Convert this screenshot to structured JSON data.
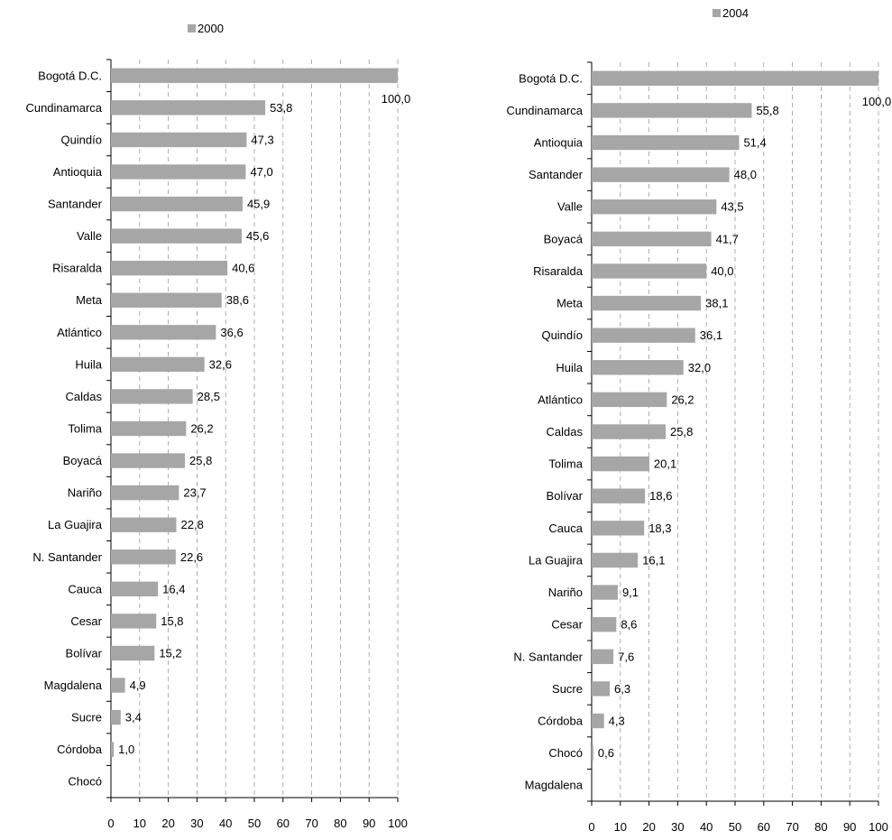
{
  "chart_data": [
    {
      "type": "bar",
      "orientation": "horizontal",
      "series": [
        {
          "name": "2000",
          "color": "#a6a6a6"
        }
      ],
      "legend_position": "top",
      "categories": [
        "Bogotá D.C.",
        "Cundinamarca",
        "Quindío",
        "Antioquia",
        "Santander",
        "Valle",
        "Risaralda",
        "Meta",
        "Atlántico",
        "Huila",
        "Caldas",
        "Tolima",
        "Boyacá",
        "Nariño",
        "La Guajira",
        "N. Santander",
        "Cauca",
        "Cesar",
        "Bolívar",
        "Magdalena",
        "Sucre",
        "Córdoba",
        "Chocó"
      ],
      "values": [
        100.0,
        53.8,
        47.3,
        47.0,
        45.9,
        45.6,
        40.6,
        38.6,
        36.6,
        32.6,
        28.5,
        26.2,
        25.8,
        23.7,
        22.8,
        22.6,
        16.4,
        15.8,
        15.2,
        4.9,
        3.4,
        1.0,
        null
      ],
      "data_labels": [
        "100,0",
        "53,8",
        "47,3",
        "47,0",
        "45,9",
        "45,6",
        "40,6",
        "38,6",
        "36,6",
        "32,6",
        "28,5",
        "26,2",
        "25,8",
        "23,7",
        "22,8",
        "22,6",
        "16,4",
        "15,8",
        "15,2",
        "4,9",
        "3,4",
        "1,0",
        ""
      ],
      "xlim": [
        0,
        100
      ],
      "xticks": [
        "0",
        "10",
        "20",
        "30",
        "40",
        "50",
        "60",
        "70",
        "80",
        "90",
        "100"
      ],
      "grid": "vertical dashed"
    },
    {
      "type": "bar",
      "orientation": "horizontal",
      "series": [
        {
          "name": "2004",
          "color": "#a6a6a6"
        }
      ],
      "legend_position": "top",
      "categories": [
        "Bogotá D.C.",
        "Cundinamarca",
        "Antioquia",
        "Santander",
        "Valle",
        "Boyacá",
        "Risaralda",
        "Meta",
        "Quindío",
        "Huila",
        "Atlántico",
        "Caldas",
        "Tolima",
        "Bolívar",
        "Cauca",
        "La Guajira",
        "Nariño",
        "Cesar",
        "N. Santander",
        "Sucre",
        "Córdoba",
        "Chocó",
        "Magdalena"
      ],
      "values": [
        100.0,
        55.8,
        51.4,
        48.0,
        43.5,
        41.7,
        40.0,
        38.1,
        36.1,
        32.0,
        26.2,
        25.8,
        20.1,
        18.6,
        18.3,
        16.1,
        9.1,
        8.6,
        7.6,
        6.3,
        4.3,
        0.6,
        null
      ],
      "data_labels": [
        "100,0",
        "55,8",
        "51,4",
        "48,0",
        "43,5",
        "41,7",
        "40,0",
        "38,1",
        "36,1",
        "32,0",
        "26,2",
        "25,8",
        "20,1",
        "18,6",
        "18,3",
        "16,1",
        "9,1",
        "8,6",
        "7,6",
        "6,3",
        "4,3",
        "0,6",
        ""
      ],
      "xlim": [
        0,
        100
      ],
      "xticks": [
        "0",
        "10",
        "20",
        "30",
        "40",
        "50",
        "60",
        "70",
        "80",
        "90",
        "100"
      ],
      "grid": "vertical dashed"
    }
  ]
}
